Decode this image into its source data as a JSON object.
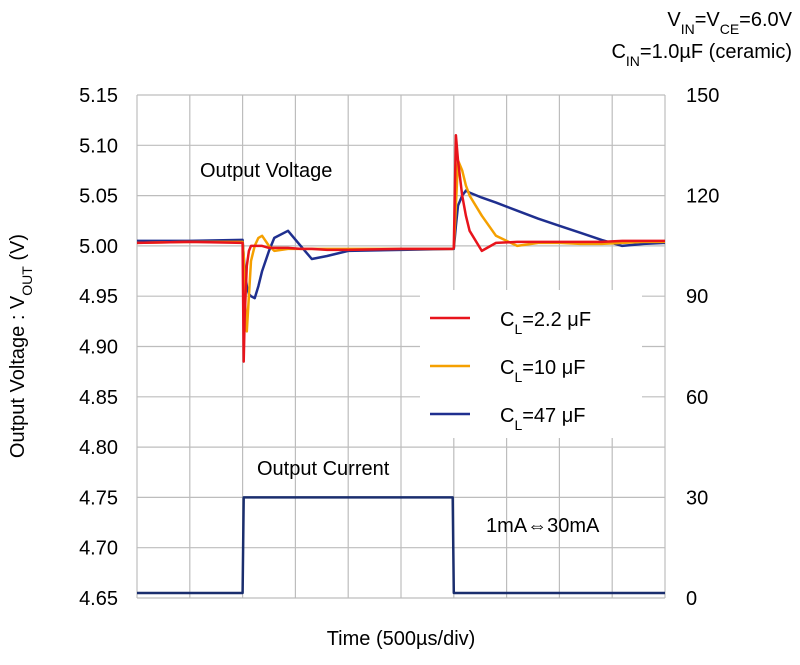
{
  "chart_data": {
    "type": "line",
    "conditions": [
      [
        "V",
        "IN",
        "=V",
        "CE",
        "=6.0V"
      ],
      [
        "C",
        "IN",
        "=1.0µF (ceramic)"
      ]
    ],
    "y_label": [
      "Output Voltage : V",
      "OUT",
      " (V)"
    ],
    "x_label": "Time (500µs/div)",
    "annotations": {
      "voltage": "Output Voltage",
      "current_step": "1mA⇔30mA"
    },
    "x": [
      0,
      500,
      1000,
      1010,
      1020,
      1040,
      1060,
      1080,
      1115,
      1150,
      1185,
      1250,
      1300,
      1430,
      1550,
      1655,
      1800,
      2000,
      2500,
      2990,
      3000,
      3020,
      3040,
      3080,
      3115,
      3150,
      3265,
      3400,
      3600,
      3800,
      4000,
      4200,
      4400,
      4595,
      4800,
      5000
    ],
    "xlim": [
      0,
      5000
    ],
    "xticks": [
      0,
      500,
      1000,
      1500,
      2000,
      2500,
      3000,
      3500,
      4000,
      4500,
      5000
    ],
    "ylim": [
      4.65,
      5.15
    ],
    "yticks": [
      4.65,
      {
        "value": 4.7,
        "label": "4.70"
      },
      4.75,
      {
        "value": 4.8,
        "label": "4.80"
      },
      4.85,
      {
        "value": 4.9,
        "label": "4.90"
      },
      4.95,
      {
        "value": 5,
        "label": "5.00"
      },
      5.05,
      {
        "value": 5.1,
        "label": "5.10"
      },
      5.15
    ],
    "y2lim": [
      0,
      150
    ],
    "y2ticks": [
      0,
      30,
      60,
      90,
      120,
      150
    ],
    "grid": true,
    "legend": "right",
    "series": [
      {
        "name": [
          "C",
          "L",
          "=2.2 μF"
        ],
        "color": "#e8141c",
        "values": [
          5.003,
          5.004,
          5.003,
          4.885,
          4.93,
          4.98,
          4.995,
          5.0,
          5.0,
          5.0,
          5.0,
          4.998,
          4.998,
          4.998,
          4.997,
          4.997,
          4.996,
          4.996,
          4.997,
          4.997,
          4.998,
          5.11,
          5.085,
          5.05,
          5.03,
          5.015,
          4.995,
          5.003,
          5.004,
          5.004,
          5.004,
          5.004,
          5.004,
          5.005,
          5.005,
          5.005
        ]
      },
      {
        "name": [
          "C",
          "L",
          "=10 μF"
        ],
        "color": "#f5a000",
        "values": [
          5.003,
          5.004,
          5.004,
          4.99,
          4.95,
          4.915,
          4.95,
          4.985,
          5.0,
          5.008,
          5.01,
          5.0,
          4.995,
          4.997,
          4.997,
          4.997,
          4.997,
          4.997,
          4.997,
          4.997,
          4.998,
          5.04,
          5.085,
          5.075,
          5.06,
          5.05,
          5.03,
          5.01,
          5.0,
          5.003,
          5.003,
          5.002,
          5.002,
          5.003,
          5.004,
          5.004
        ]
      },
      {
        "name": [
          "C",
          "L",
          "=47 μF"
        ],
        "color": "#1f2f8f",
        "values": [
          5.005,
          5.005,
          5.006,
          4.99,
          4.975,
          4.96,
          4.952,
          4.95,
          4.948,
          4.96,
          4.975,
          4.995,
          5.008,
          5.015,
          5.0,
          4.987,
          4.99,
          4.995,
          4.996,
          4.997,
          4.997,
          5.02,
          5.04,
          5.05,
          5.055,
          5.053,
          5.048,
          5.043,
          5.035,
          5.027,
          5.02,
          5.013,
          5.006,
          5.0,
          5.002,
          5.003
        ]
      },
      {
        "name": "Output Current",
        "color": "#1a2e6e",
        "axis": "y2",
        "values": [
          1.5,
          1.5,
          1.5,
          30,
          30,
          30,
          30,
          30,
          30,
          30,
          30,
          30,
          30,
          30,
          30,
          30,
          30,
          30,
          30,
          30,
          1.5,
          1.5,
          1.5,
          1.5,
          1.5,
          1.5,
          1.5,
          1.5,
          1.5,
          1.5,
          1.5,
          1.5,
          1.5,
          1.5,
          1.5,
          1.5
        ]
      }
    ]
  }
}
